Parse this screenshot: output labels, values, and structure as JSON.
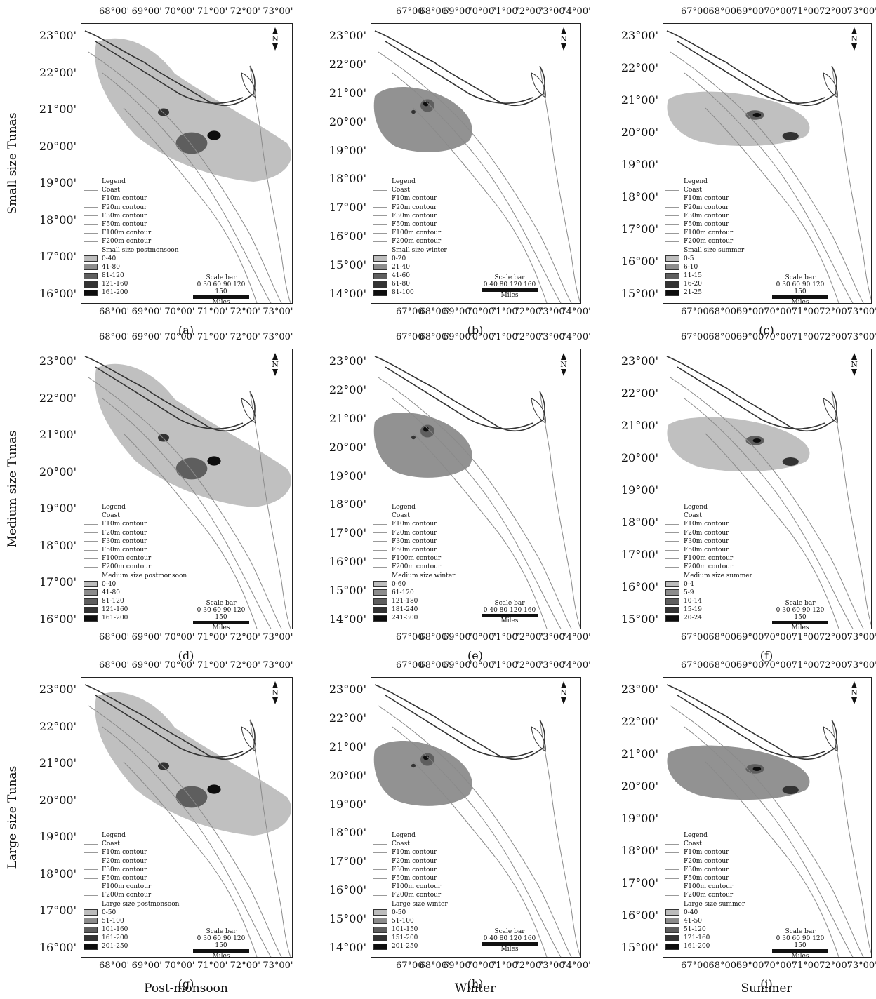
{
  "row_labels": [
    "Small size Tunas",
    "Medium size Tunas",
    "Large size Tunas"
  ],
  "column_labels": [
    "Post-monsoon",
    "Winter",
    "Summer"
  ],
  "legend_common": {
    "title": "Legend",
    "lines": [
      "Coast",
      "F10m contour",
      "F20m contour",
      "F30m contour",
      "F50m contour",
      "F100m contour",
      "F200m contour"
    ]
  },
  "north_label": "N",
  "scale_title": "Scale bar",
  "scale_unit": "Miles",
  "colors": {
    "coast": "#8a8a8a",
    "class1": "#bdbdbd",
    "class2": "#8c8c8c",
    "class3": "#5e5e5e",
    "class4": "#333333",
    "class5": "#0d0d0d"
  },
  "panels": [
    {
      "sub_label": "(a)",
      "x_ticks": [
        "68°00'",
        "69°00'",
        "70°00'",
        "71°00'",
        "72°00'",
        "73°00'"
      ],
      "y_ticks": [
        "23°00'",
        "22°00'",
        "21°00'",
        "20°00'",
        "19°00'",
        "18°00'",
        "17°00'",
        "16°00'"
      ],
      "class_title": "Small size postmonsoon",
      "classes": [
        "0-40",
        "41-80",
        "81-120",
        "121-160",
        "161-200"
      ],
      "scale_ticks": "0  30  60  90  120 150",
      "zone_shade": "class1"
    },
    {
      "sub_label": "(b)",
      "x_ticks": [
        "67°00'",
        "68°00'",
        "69°00'",
        "70°00'",
        "71°00'",
        "72°00'",
        "73°00'",
        "74°00'"
      ],
      "y_ticks": [
        "23°00'",
        "22°00'",
        "21°00'",
        "20°00'",
        "19°00'",
        "18°00'",
        "17°00'",
        "16°00'",
        "15°00'",
        "14°00'"
      ],
      "class_title": "Small size winter",
      "classes": [
        "0-20",
        "21-40",
        "41-60",
        "61-80",
        "81-100"
      ],
      "scale_ticks": "0   40    80  120  160",
      "zone_shade": "class2"
    },
    {
      "sub_label": "(c)",
      "x_ticks": [
        "67°00'",
        "68°00'",
        "69°00'",
        "70°00'",
        "71°00'",
        "72°00'",
        "73°00'"
      ],
      "y_ticks": [
        "23°00'",
        "22°00'",
        "21°00'",
        "20°00'",
        "19°00'",
        "18°00'",
        "17°00'",
        "16°00'",
        "15°00'"
      ],
      "class_title": "Small size summer",
      "classes": [
        "0-5",
        "6-10",
        "11-15",
        "16-20",
        "21-25"
      ],
      "scale_ticks": "0  30  60  90  120 150",
      "zone_shade": "class1"
    },
    {
      "sub_label": "(d)",
      "x_ticks": [
        "68°00'",
        "69°00'",
        "70°00'",
        "71°00'",
        "72°00'",
        "73°00'"
      ],
      "y_ticks": [
        "23°00'",
        "22°00'",
        "21°00'",
        "20°00'",
        "19°00'",
        "18°00'",
        "17°00'",
        "16°00'"
      ],
      "class_title": "Medium size postmonsoon",
      "classes": [
        "0-40",
        "41-80",
        "81-120",
        "121-160",
        "161-200"
      ],
      "scale_ticks": "0  30  60  90  120 150",
      "zone_shade": "class1"
    },
    {
      "sub_label": "(e)",
      "x_ticks": [
        "67°00'",
        "68°00'",
        "69°00'",
        "70°00'",
        "71°00'",
        "72°00'",
        "73°00'",
        "74°00'"
      ],
      "y_ticks": [
        "23°00'",
        "22°00'",
        "21°00'",
        "20°00'",
        "19°00'",
        "18°00'",
        "17°00'",
        "16°00'",
        "15°00'",
        "14°00'"
      ],
      "class_title": "Medium size winter",
      "classes": [
        "0-60",
        "61-120",
        "121-180",
        "181-240",
        "241-300"
      ],
      "scale_ticks": "0   40    80  120  160",
      "zone_shade": "class2"
    },
    {
      "sub_label": "(f)",
      "x_ticks": [
        "67°00'",
        "68°00'",
        "69°00'",
        "70°00'",
        "71°00'",
        "72°00'",
        "73°00'"
      ],
      "y_ticks": [
        "23°00'",
        "22°00'",
        "21°00'",
        "20°00'",
        "19°00'",
        "18°00'",
        "17°00'",
        "16°00'",
        "15°00'"
      ],
      "class_title": "Medium size summer",
      "classes": [
        "0-4",
        "5-9",
        "10-14",
        "15-19",
        "20-24"
      ],
      "scale_ticks": "0  30  60  90  120 150",
      "zone_shade": "class1"
    },
    {
      "sub_label": "(g)",
      "x_ticks": [
        "68°00'",
        "69°00'",
        "70°00'",
        "71°00'",
        "72°00'",
        "73°00'"
      ],
      "y_ticks": [
        "23°00'",
        "22°00'",
        "21°00'",
        "20°00'",
        "19°00'",
        "18°00'",
        "17°00'",
        "16°00'"
      ],
      "class_title": "Large size postmonsoon",
      "classes": [
        "0-50",
        "51-100",
        "101-160",
        "161-200",
        "201-250"
      ],
      "scale_ticks": "0  30  60  90  120 150",
      "zone_shade": "class1"
    },
    {
      "sub_label": "(h)",
      "x_ticks": [
        "67°00'",
        "68°00'",
        "69°00'",
        "70°00'",
        "71°00'",
        "72°00'",
        "73°00'",
        "74°00'"
      ],
      "y_ticks": [
        "23°00'",
        "22°00'",
        "21°00'",
        "20°00'",
        "19°00'",
        "18°00'",
        "17°00'",
        "16°00'",
        "15°00'",
        "14°00'"
      ],
      "class_title": "Large size winter",
      "classes": [
        "0-50",
        "51-100",
        "101-150",
        "151-200",
        "201-250"
      ],
      "scale_ticks": "0   40    80  120  160",
      "zone_shade": "class2"
    },
    {
      "sub_label": "(i)",
      "x_ticks": [
        "67°00'",
        "68°00'",
        "69°00'",
        "70°00'",
        "71°00'",
        "72°00'",
        "73°00'"
      ],
      "y_ticks": [
        "23°00'",
        "22°00'",
        "21°00'",
        "20°00'",
        "19°00'",
        "18°00'",
        "17°00'",
        "16°00'",
        "15°00'"
      ],
      "class_title": "Large size summer",
      "classes": [
        "0-40",
        "41-50",
        "51-120",
        "121-160",
        "161-200"
      ],
      "scale_ticks": "0  30  60  90  120 150",
      "zone_shade": "class2"
    }
  ]
}
